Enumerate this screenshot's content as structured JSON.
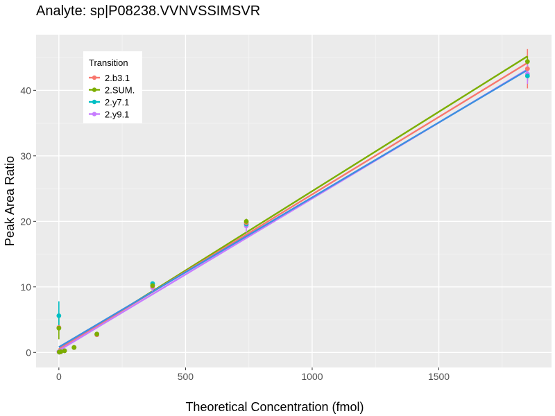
{
  "chart_data": {
    "type": "scatter",
    "title": "Analyte: sp|P08238.VVNVSSIMSVR",
    "xlabel": "Theoretical Concentration (fmol)",
    "ylabel": "Peak Area Ratio",
    "xlim": [
      -90,
      1945
    ],
    "ylim": [
      -2.3,
      48.5
    ],
    "x_ticks": [
      0,
      500,
      1000,
      1500
    ],
    "y_ticks": [
      0,
      10,
      20,
      30,
      40
    ],
    "grid": true,
    "legend_position": "top-left",
    "legend_title": "Transition",
    "series": [
      {
        "name": "2.b3.1",
        "color": "#f8766d",
        "points": [
          {
            "x": 0,
            "y": 3.8,
            "err": 0.3
          },
          {
            "x": 1.5,
            "y": 0.05
          },
          {
            "x": 7.5,
            "y": 0.1
          },
          {
            "x": 22.5,
            "y": 0.25
          },
          {
            "x": 60,
            "y": 0.75
          },
          {
            "x": 150,
            "y": 2.7
          },
          {
            "x": 370,
            "y": 10.1,
            "err": 0.4
          },
          {
            "x": 740,
            "y": 19.8,
            "err": 0.4
          },
          {
            "x": 1850,
            "y": 43.3,
            "err": 3.0
          }
        ],
        "fit": {
          "x": [
            0,
            1850
          ],
          "y": [
            0.5,
            44.2
          ]
        }
      },
      {
        "name": "2.SUM.",
        "color": "#7cae00",
        "points": [
          {
            "x": 0,
            "y": 3.7,
            "err": 1.7
          },
          {
            "x": 1.5,
            "y": 0.05
          },
          {
            "x": 7.5,
            "y": 0.1
          },
          {
            "x": 22.5,
            "y": 0.25
          },
          {
            "x": 60,
            "y": 0.75
          },
          {
            "x": 150,
            "y": 2.8
          },
          {
            "x": 370,
            "y": 10.2,
            "err": 0.5
          },
          {
            "x": 740,
            "y": 20.0,
            "err": 0.4
          },
          {
            "x": 1850,
            "y": 44.4,
            "err": 0.8
          }
        ],
        "fit": {
          "x": [
            0,
            1850
          ],
          "y": [
            0.4,
            45.2
          ]
        }
      },
      {
        "name": "2.y7.1",
        "color": "#00bfc4",
        "points": [
          {
            "x": 0,
            "y": 5.6,
            "err": 2.2
          },
          {
            "x": 1.5,
            "y": 0.05
          },
          {
            "x": 7.5,
            "y": 0.1
          },
          {
            "x": 22.5,
            "y": 0.25
          },
          {
            "x": 60,
            "y": 0.75
          },
          {
            "x": 150,
            "y": 2.7
          },
          {
            "x": 370,
            "y": 10.5,
            "err": 0.3
          },
          {
            "x": 740,
            "y": 19.6,
            "err": 0.4
          },
          {
            "x": 1850,
            "y": 42.2,
            "err": 0.8
          }
        ],
        "fit": {
          "x": [
            0,
            1850
          ],
          "y": [
            0.8,
            43.1
          ]
        }
      },
      {
        "name": "2.y9.1",
        "color": "#c77cff",
        "points": [
          {
            "x": 0,
            "y": 0.1
          },
          {
            "x": 1.5,
            "y": 0.05
          },
          {
            "x": 7.5,
            "y": 0.1
          },
          {
            "x": 22.5,
            "y": 0.25
          },
          {
            "x": 60,
            "y": 0.75
          },
          {
            "x": 150,
            "y": 2.8
          },
          {
            "x": 370,
            "y": 9.9,
            "err": 0.6
          },
          {
            "x": 740,
            "y": 19.3,
            "err": 1.0
          },
          {
            "x": 1850,
            "y": 42.5,
            "err": 1.5
          }
        ],
        "fit": {
          "x": [
            0,
            1850
          ],
          "y": [
            0.3,
            43.2
          ]
        }
      }
    ]
  }
}
